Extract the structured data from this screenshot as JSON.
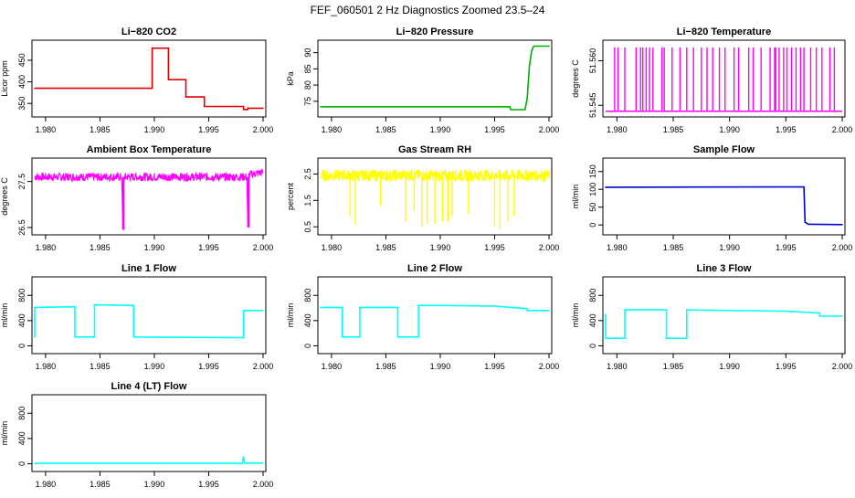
{
  "page_title": "FEF_060501  2 Hz Diagnostics Zoomed 23.5–24",
  "chart_data": [
    {
      "type": "line",
      "title": "Li−820 CO2",
      "xlabel": "",
      "ylabel": "Licor ppm",
      "color": "#e00000",
      "xlim": [
        1.979,
        2.0
      ],
      "ylim": [
        325,
        490
      ],
      "x_ticks": [
        "1.980",
        "1.985",
        "1.990",
        "1.995",
        "2.000"
      ],
      "y_ticks": [
        "350",
        "400",
        "450"
      ],
      "style": "step",
      "series": [
        {
          "name": "Li-820 CO2",
          "x": [
            1.979,
            1.9898,
            1.9898,
            1.9913,
            1.9913,
            1.9929,
            1.9929,
            1.9946,
            1.9946,
            1.9982,
            1.9982,
            1.9986,
            1.9986,
            2.0
          ],
          "values": [
            385,
            385,
            478,
            478,
            405,
            405,
            365,
            365,
            343,
            343,
            336,
            336,
            339,
            339
          ]
        }
      ]
    },
    {
      "type": "line",
      "title": "Li−820 Pressure",
      "xlabel": "",
      "ylabel": "kPa",
      "color": "#00b000",
      "xlim": [
        1.979,
        2.0
      ],
      "ylim": [
        71,
        93
      ],
      "x_ticks": [
        "1.980",
        "1.985",
        "1.990",
        "1.995",
        "2.000"
      ],
      "y_ticks": [
        "75",
        "80",
        "85",
        "90"
      ],
      "series": [
        {
          "name": "Li-820 Pressure",
          "x": [
            1.979,
            1.9964,
            1.9965,
            1.9978,
            1.998,
            1.9982,
            1.9984,
            1.9986,
            2.0
          ],
          "values": [
            73.3,
            73.3,
            72.4,
            72.4,
            76.0,
            86.0,
            90.5,
            92.0,
            92.0
          ]
        }
      ]
    },
    {
      "type": "line",
      "title": "Li−820 Temperature",
      "xlabel": "",
      "ylabel": "degrees C",
      "color": "#ff00ff",
      "xlim": [
        1.979,
        2.0
      ],
      "ylim": [
        51.542,
        51.566
      ],
      "x_ticks": [
        "1.980",
        "1.985",
        "1.990",
        "1.995",
        "2.000"
      ],
      "y_ticks": [
        "51.545",
        "51.560"
      ],
      "style": "spikes",
      "baseline": 51.543,
      "series": [
        {
          "name": "Li-820 Temperature",
          "x": [
            1.9798,
            1.9801,
            1.9807,
            1.9817,
            1.9821,
            1.9823,
            1.9826,
            1.9829,
            1.9832,
            1.984,
            1.9842,
            1.9849,
            1.9856,
            1.9862,
            1.9868,
            1.9875,
            1.988,
            1.9885,
            1.9891,
            1.9896,
            1.9904,
            1.9908,
            1.9917,
            1.9921,
            1.9928,
            1.9936,
            1.994,
            1.9941,
            1.9944,
            1.9948,
            1.9951,
            1.9955,
            1.9959,
            1.9963,
            1.9966,
            1.9972,
            1.9977,
            1.9982,
            1.9989,
            1.9993
          ],
          "values": [
            51.5645,
            51.5645,
            51.5645,
            51.5645,
            51.5645,
            51.5645,
            51.5645,
            51.5645,
            51.5645,
            51.5645,
            51.5645,
            51.5645,
            51.5645,
            51.5645,
            51.5645,
            51.5645,
            51.5645,
            51.5645,
            51.5645,
            51.5645,
            51.5645,
            51.5645,
            51.5645,
            51.5645,
            51.5645,
            51.5645,
            51.5645,
            51.5645,
            51.5645,
            51.5645,
            51.5645,
            51.5645,
            51.5645,
            51.5645,
            51.5645,
            51.5645,
            51.5645,
            51.5645,
            51.5645,
            51.5645
          ]
        }
      ]
    },
    {
      "type": "line",
      "title": "Ambient Box Temperature",
      "xlabel": "",
      "ylabel": "degrees C",
      "color": "#ff00ff",
      "xlim": [
        1.979,
        2.0
      ],
      "ylim": [
        26.4,
        27.95
      ],
      "x_ticks": [
        "1.980",
        "1.985",
        "1.990",
        "1.995",
        "2.000"
      ],
      "y_ticks": [
        "26.5",
        "27.5"
      ],
      "style": "noisy",
      "noise": 0.09,
      "series": [
        {
          "name": "Ambient Box Temperature",
          "x": [
            1.979,
            1.985,
            1.987,
            1.9871,
            1.9872,
            1.9985,
            1.9986,
            1.9987,
            2.0
          ],
          "values": [
            27.6,
            27.6,
            27.6,
            26.45,
            27.6,
            27.6,
            26.5,
            27.65,
            27.7
          ]
        }
      ]
    },
    {
      "type": "line",
      "title": "Gas Stream RH",
      "xlabel": "",
      "ylabel": "percent",
      "color": "#ffff00",
      "xlim": [
        1.979,
        2.0
      ],
      "ylim": [
        0.3,
        3.0
      ],
      "x_ticks": [
        "1.980",
        "1.985",
        "1.990",
        "1.995",
        "2.000"
      ],
      "y_ticks": [
        "0.5",
        "1.5",
        "2.5"
      ],
      "style": "noisy",
      "noise": 0.22,
      "dips": [
        [
          1.9817,
          0.9
        ],
        [
          1.9822,
          0.6
        ],
        [
          1.9845,
          1.3
        ],
        [
          1.9868,
          0.7
        ],
        [
          1.9876,
          1.1
        ],
        [
          1.9883,
          0.5
        ],
        [
          1.9888,
          0.6
        ],
        [
          1.9895,
          0.6
        ],
        [
          1.9902,
          0.7
        ],
        [
          1.9907,
          0.7
        ],
        [
          1.9911,
          0.9
        ],
        [
          1.9926,
          1.0
        ],
        [
          1.995,
          0.5
        ],
        [
          1.9955,
          0.4
        ],
        [
          1.9962,
          0.7
        ],
        [
          1.9968,
          0.9
        ]
      ],
      "series": [
        {
          "name": "Gas Stream RH",
          "x": [
            1.979,
            2.0
          ],
          "values": [
            2.45,
            2.45
          ]
        }
      ]
    },
    {
      "type": "line",
      "title": "Sample Flow",
      "xlabel": "",
      "ylabel": "ml/min",
      "color": "#0000cc",
      "xlim": [
        1.979,
        2.0
      ],
      "ylim": [
        -20,
        180
      ],
      "x_ticks": [
        "1.980",
        "1.985",
        "1.990",
        "1.995",
        "2.000"
      ],
      "y_ticks": [
        "0",
        "50",
        "100",
        "150"
      ],
      "series": [
        {
          "name": "Sample Flow",
          "x": [
            1.979,
            1.9966,
            1.9967,
            1.997,
            2.0
          ],
          "values": [
            106,
            107,
            8,
            2,
            1
          ]
        }
      ]
    },
    {
      "type": "line",
      "title": "Line 1 Flow",
      "xlabel": "",
      "ylabel": "ml/min",
      "color": "#00ffff",
      "xlim": [
        1.979,
        2.0
      ],
      "ylim": [
        -80,
        1050
      ],
      "x_ticks": [
        "1.980",
        "1.985",
        "1.990",
        "1.995",
        "2.000"
      ],
      "y_ticks": [
        "0",
        "400",
        "800"
      ],
      "style": "step",
      "series": [
        {
          "name": "Line 1 Flow",
          "x": [
            1.979,
            1.979,
            1.9827,
            1.9827,
            1.9845,
            1.9845,
            1.9881,
            1.9881,
            1.9982,
            1.9982,
            2.0
          ],
          "values": [
            140,
            610,
            620,
            140,
            140,
            650,
            640,
            140,
            130,
            560,
            560
          ]
        }
      ]
    },
    {
      "type": "line",
      "title": "Line 2 Flow",
      "xlabel": "",
      "ylabel": "ml/min",
      "color": "#00ffff",
      "xlim": [
        1.979,
        2.0
      ],
      "ylim": [
        -80,
        1050
      ],
      "x_ticks": [
        "1.980",
        "1.985",
        "1.990",
        "1.995",
        "2.000"
      ],
      "y_ticks": [
        "0",
        "400",
        "800"
      ],
      "style": "step",
      "series": [
        {
          "name": "Line 2 Flow",
          "x": [
            1.979,
            1.981,
            1.981,
            1.9826,
            1.9826,
            1.9861,
            1.9861,
            1.988,
            1.988,
            1.99,
            1.995,
            1.998,
            1.998,
            2.0
          ],
          "values": [
            610,
            610,
            140,
            140,
            610,
            610,
            140,
            140,
            640,
            640,
            630,
            590,
            560,
            560
          ]
        }
      ]
    },
    {
      "type": "line",
      "title": "Line 3 Flow",
      "xlabel": "",
      "ylabel": "ml/min",
      "color": "#00ffff",
      "xlim": [
        1.979,
        2.0
      ],
      "ylim": [
        -80,
        1050
      ],
      "x_ticks": [
        "1.980",
        "1.985",
        "1.990",
        "1.995",
        "2.000"
      ],
      "y_ticks": [
        "0",
        "400",
        "800"
      ],
      "style": "step",
      "series": [
        {
          "name": "Line 3 Flow",
          "x": [
            1.979,
            1.979,
            1.9807,
            1.9807,
            1.9844,
            1.9844,
            1.9862,
            1.9862,
            1.99,
            1.995,
            1.998,
            1.998,
            2.0
          ],
          "values": [
            500,
            120,
            120,
            570,
            570,
            120,
            120,
            570,
            560,
            550,
            520,
            470,
            470
          ]
        }
      ]
    },
    {
      "type": "line",
      "title": "Line 4 (LT) Flow",
      "xlabel": "",
      "ylabel": "ml/min",
      "color": "#00ffff",
      "xlim": [
        1.979,
        2.0
      ],
      "ylim": [
        -80,
        1050
      ],
      "x_ticks": [
        "1.980",
        "1.985",
        "1.990",
        "1.995",
        "2.000"
      ],
      "y_ticks": [
        "0",
        "400",
        "800"
      ],
      "series": [
        {
          "name": "Line 4 (LT) Flow",
          "x": [
            1.979,
            1.9981,
            1.9982,
            1.9983,
            2.0
          ],
          "values": [
            5,
            5,
            110,
            10,
            10
          ]
        }
      ]
    }
  ]
}
